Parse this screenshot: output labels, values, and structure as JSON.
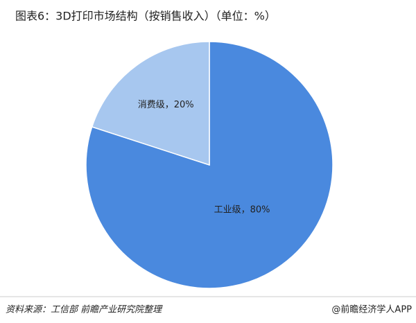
{
  "chart_data": {
    "type": "pie",
    "title": "图表6：3D打印市场结构（按销售收入）（单位：%）",
    "categories": [
      "工业级",
      "消费级"
    ],
    "values": [
      80,
      20
    ],
    "value_labels": [
      "工业级，80%",
      "消费级，20%"
    ],
    "colors": [
      "#4a89de",
      "#a7c7ef"
    ],
    "source": "资料来源：工信部 前瞻产业研究院整理",
    "credit": "@前瞻经济学人APP"
  }
}
